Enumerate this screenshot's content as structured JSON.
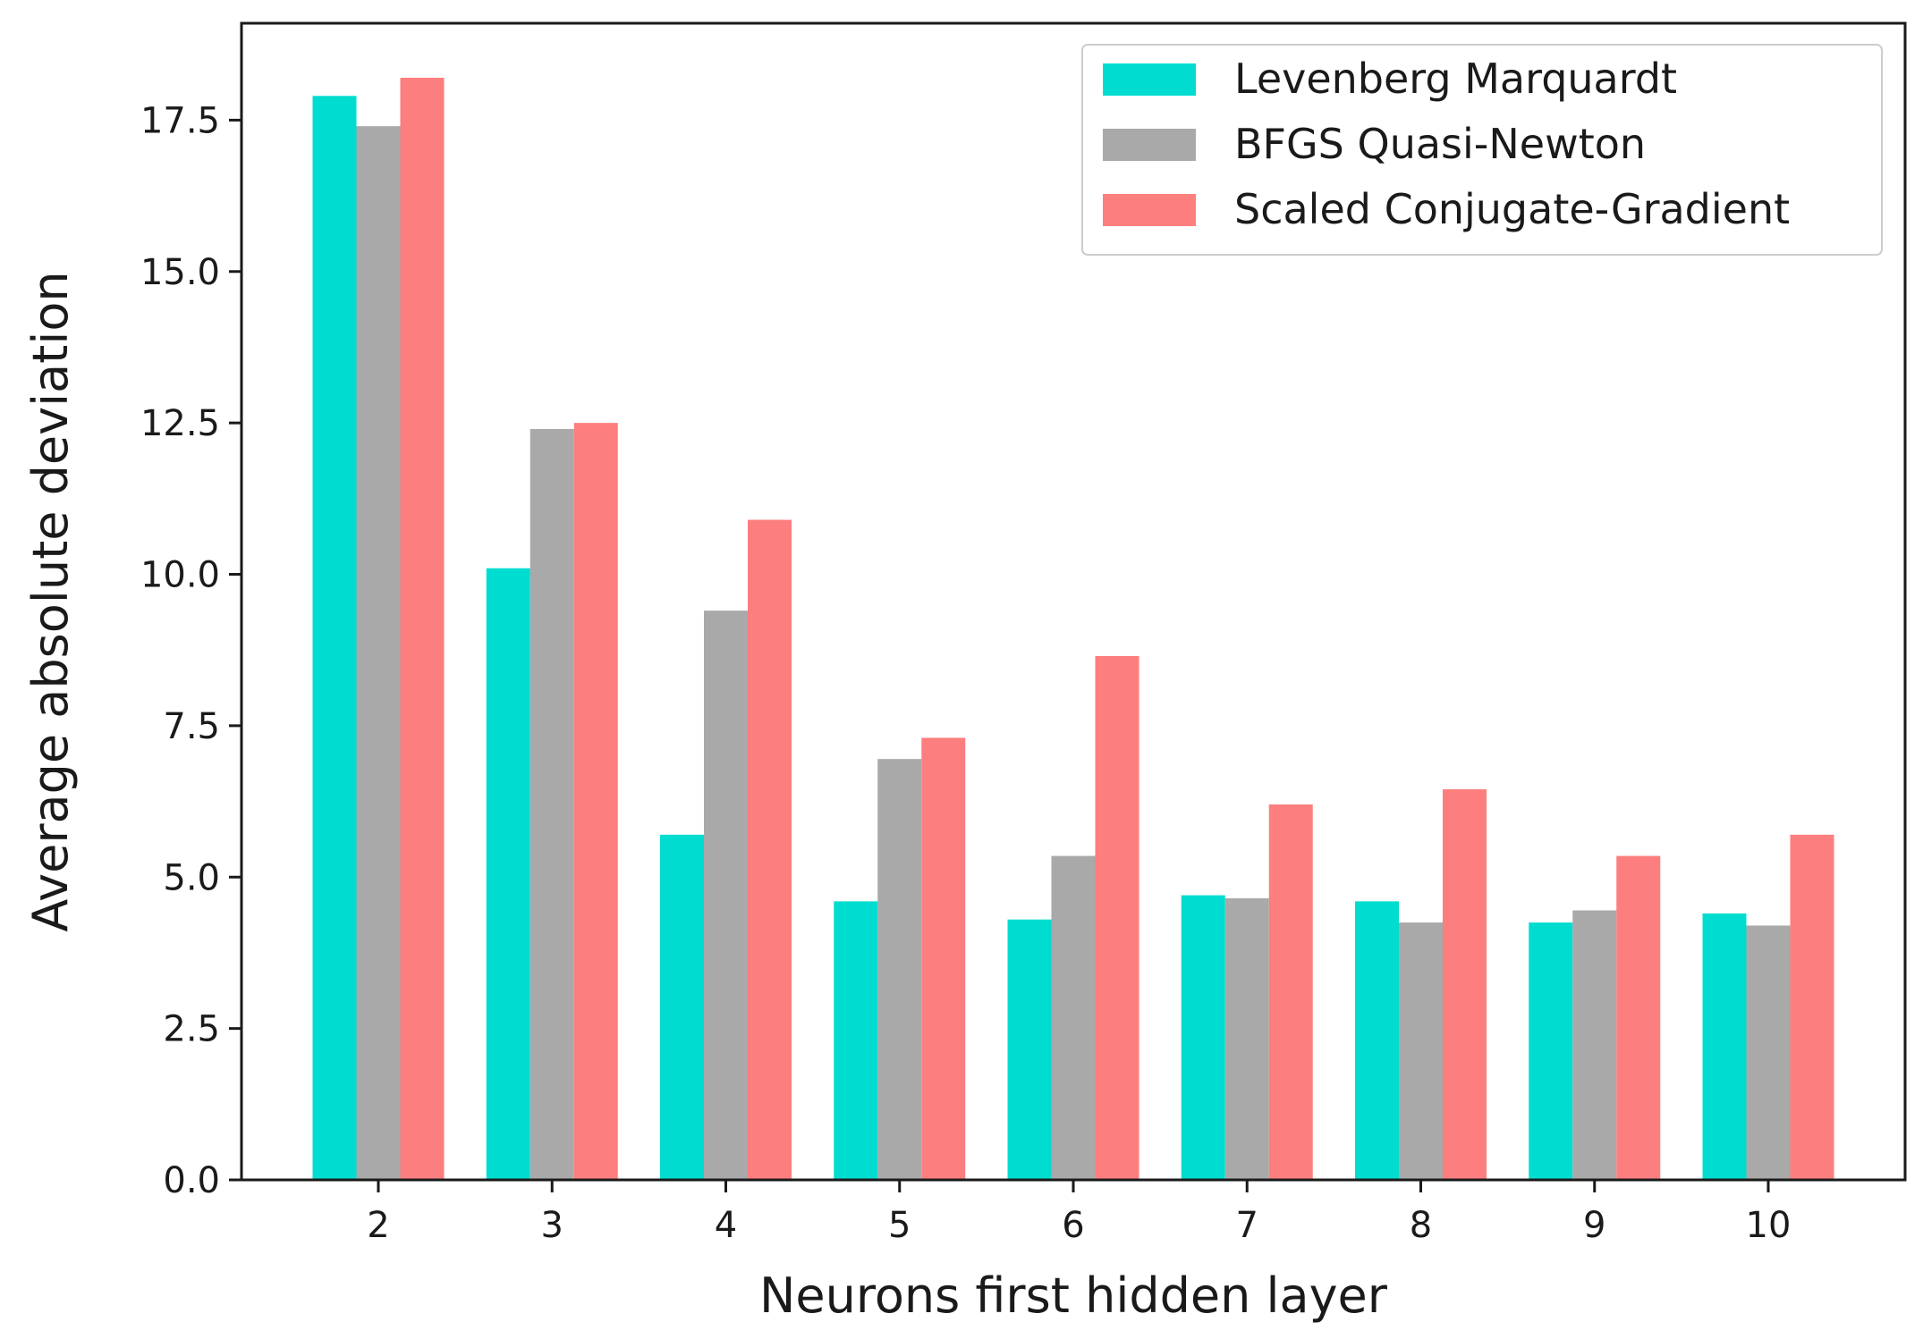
{
  "chart_data": {
    "type": "bar",
    "title": "",
    "xlabel": "Neurons first hidden layer",
    "ylabel": "Average absolute deviation",
    "categories": [
      "2",
      "3",
      "4",
      "5",
      "6",
      "7",
      "8",
      "9",
      "10"
    ],
    "series": [
      {
        "name": "Levenberg Marquardt",
        "color": "#00ddd0",
        "values": [
          17.9,
          10.1,
          5.7,
          4.6,
          4.3,
          4.7,
          4.6,
          4.25,
          4.4
        ]
      },
      {
        "name": "BFGS Quasi-Newton",
        "color": "#a9a9a9",
        "values": [
          17.4,
          12.4,
          9.4,
          6.95,
          5.35,
          4.65,
          4.25,
          4.45,
          4.2
        ]
      },
      {
        "name": "Scaled Conjugate-Gradient",
        "color": "#fd7e7e",
        "values": [
          18.2,
          12.5,
          10.9,
          7.3,
          8.65,
          6.2,
          6.45,
          5.35,
          5.7
        ]
      }
    ],
    "ylim": [
      0,
      19.1
    ],
    "yticks": [
      "0.0",
      "2.5",
      "5.0",
      "7.5",
      "10.0",
      "12.5",
      "15.0",
      "17.5"
    ],
    "grid": false,
    "legend_position": "top-right"
  }
}
